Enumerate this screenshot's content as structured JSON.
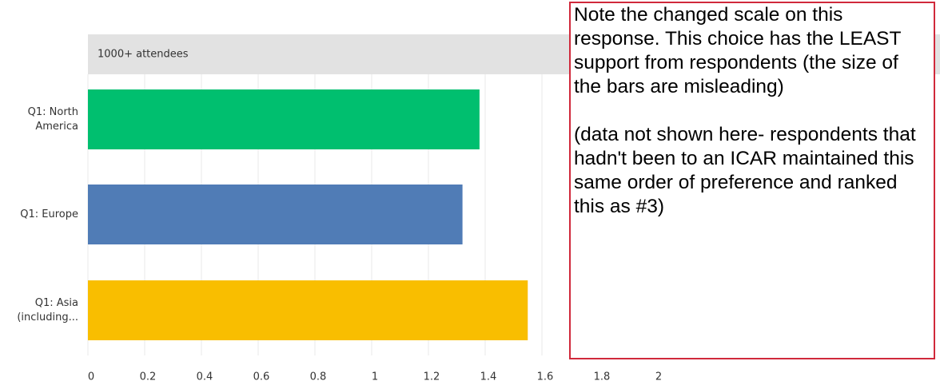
{
  "chart_data": {
    "type": "bar",
    "orientation": "horizontal",
    "subtitle": "1000+ attendees",
    "categories": [
      "Q1: North America",
      "Q1: Europe",
      "Q1: Asia (including..."
    ],
    "values": [
      1.38,
      1.32,
      1.55
    ],
    "colors": [
      "#00bf6f",
      "#507cb6",
      "#f9be00"
    ],
    "xlim": [
      0,
      2
    ],
    "xticks": [
      0,
      0.2,
      0.4,
      0.6,
      0.8,
      1,
      1.2,
      1.4,
      1.6,
      1.8,
      2
    ],
    "grid": true
  },
  "annotation": {
    "paragraphs": [
      "Note the changed scale on this response. This choice has the LEAST support from respondents (the size of the bars are misleading)",
      "(data not shown here- respondents that hadn't been to an ICAR maintained this same order of preference and ranked this as #3)"
    ]
  }
}
